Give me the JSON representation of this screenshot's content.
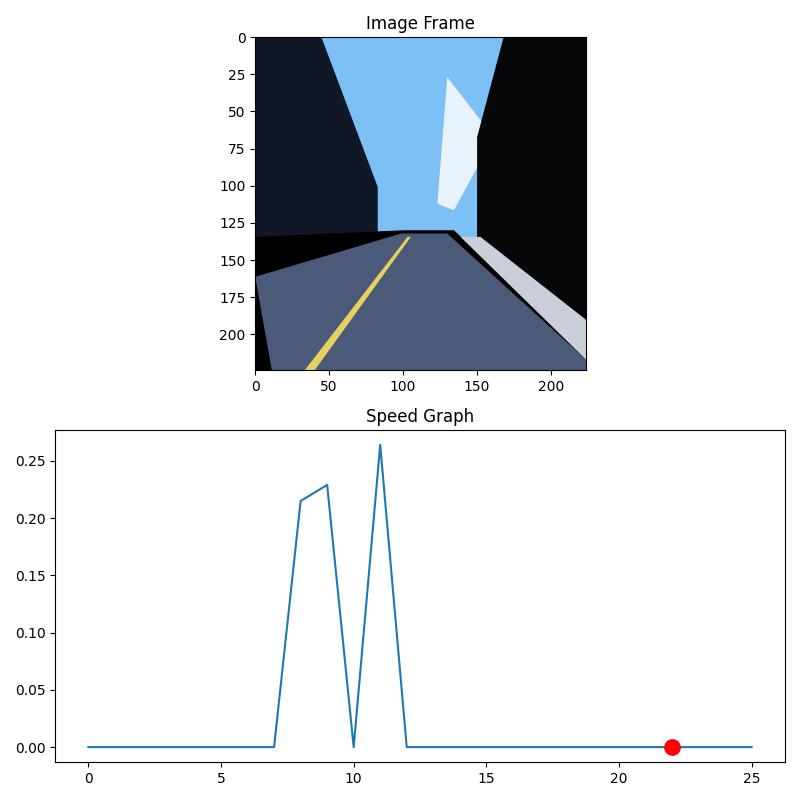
{
  "chart_data": [
    {
      "type": "image",
      "title": "Image Frame",
      "xlim": [
        0,
        224
      ],
      "ylim": [
        224,
        0
      ],
      "xticks": [
        0,
        50,
        100,
        150,
        200
      ],
      "yticks": [
        0,
        25,
        50,
        75,
        100,
        125,
        150,
        175,
        200
      ]
    },
    {
      "type": "line",
      "title": "Speed Graph",
      "x": [
        0,
        1,
        2,
        3,
        4,
        5,
        6,
        7,
        8,
        9,
        10,
        11,
        12,
        13,
        14,
        15,
        16,
        17,
        18,
        19,
        20,
        21,
        22,
        23,
        24,
        25
      ],
      "values": [
        0,
        0,
        0,
        0,
        0,
        0,
        0,
        0,
        0.215,
        0.229,
        0,
        0.264,
        0,
        0,
        0,
        0,
        0,
        0,
        0,
        0,
        0,
        0,
        0,
        0,
        0,
        0
      ],
      "color": "#1f77b4",
      "highlight": {
        "x": 22,
        "y": 0,
        "color": "red"
      },
      "xlim": [
        -1.25,
        26.25
      ],
      "ylim": [
        -0.013,
        0.277
      ],
      "xticks": [
        0,
        5,
        10,
        15,
        20,
        25
      ],
      "yticks": [
        {
          "value": 0,
          "label": "0.00"
        },
        {
          "value": 0.05,
          "label": "0.05"
        },
        {
          "value": 0.1,
          "label": "0.10"
        },
        {
          "value": 0.15,
          "label": "0.15"
        },
        {
          "value": 0.2,
          "label": "0.20"
        },
        {
          "value": 0.25,
          "label": "0.25"
        }
      ]
    }
  ]
}
